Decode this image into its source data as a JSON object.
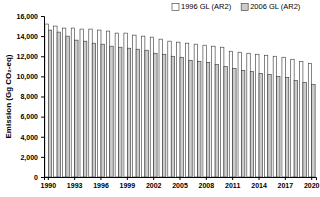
{
  "chart_data": {
    "type": "bar",
    "y_label": "Emission (Gg CO₂-eq)",
    "categories": [
      "1990",
      null,
      null,
      "1993",
      null,
      null,
      "1996",
      null,
      null,
      "1999",
      null,
      null,
      "2002",
      null,
      null,
      "2005",
      null,
      null,
      "2008",
      null,
      null,
      "2011",
      null,
      null,
      "2014",
      null,
      null,
      "2017",
      null,
      null,
      "2020"
    ],
    "series": [
      {
        "name": "1996 GL (AR2)",
        "color": "#ffffff",
        "values": [
          15200,
          15000,
          14800,
          14800,
          14700,
          14700,
          14600,
          14500,
          14300,
          14300,
          14100,
          14000,
          13900,
          13700,
          13500,
          13400,
          13300,
          13200,
          13100,
          13000,
          12900,
          12500,
          12400,
          12300,
          12200,
          12100,
          12000,
          11900,
          11700,
          11500,
          11300
        ]
      },
      {
        "name": "2006 GL (AR2)",
        "color": "#cccccc",
        "values": [
          14600,
          14400,
          14000,
          13600,
          13500,
          13300,
          13200,
          13000,
          12900,
          12800,
          12700,
          12600,
          12300,
          12200,
          12000,
          11900,
          11600,
          11500,
          11400,
          11200,
          11000,
          10800,
          10600,
          10500,
          10300,
          10200,
          10000,
          9900,
          9600,
          9400,
          9200
        ]
      }
    ],
    "ylim": [
      0,
      16000
    ],
    "yticks": [
      0,
      {
        "value": 2000,
        "label": "2,000"
      },
      {
        "value": 4000,
        "label": "4,000"
      },
      {
        "value": 6000,
        "label": "6,000"
      },
      {
        "value": 8000,
        "label": "8,000"
      },
      {
        "value": 10000,
        "label": "10,000"
      },
      {
        "value": 12000,
        "label": "12,000"
      },
      {
        "value": 14000,
        "label": "14,000"
      },
      {
        "value": 16000,
        "label": "16,000"
      }
    ],
    "grid": false,
    "legend": "top"
  }
}
